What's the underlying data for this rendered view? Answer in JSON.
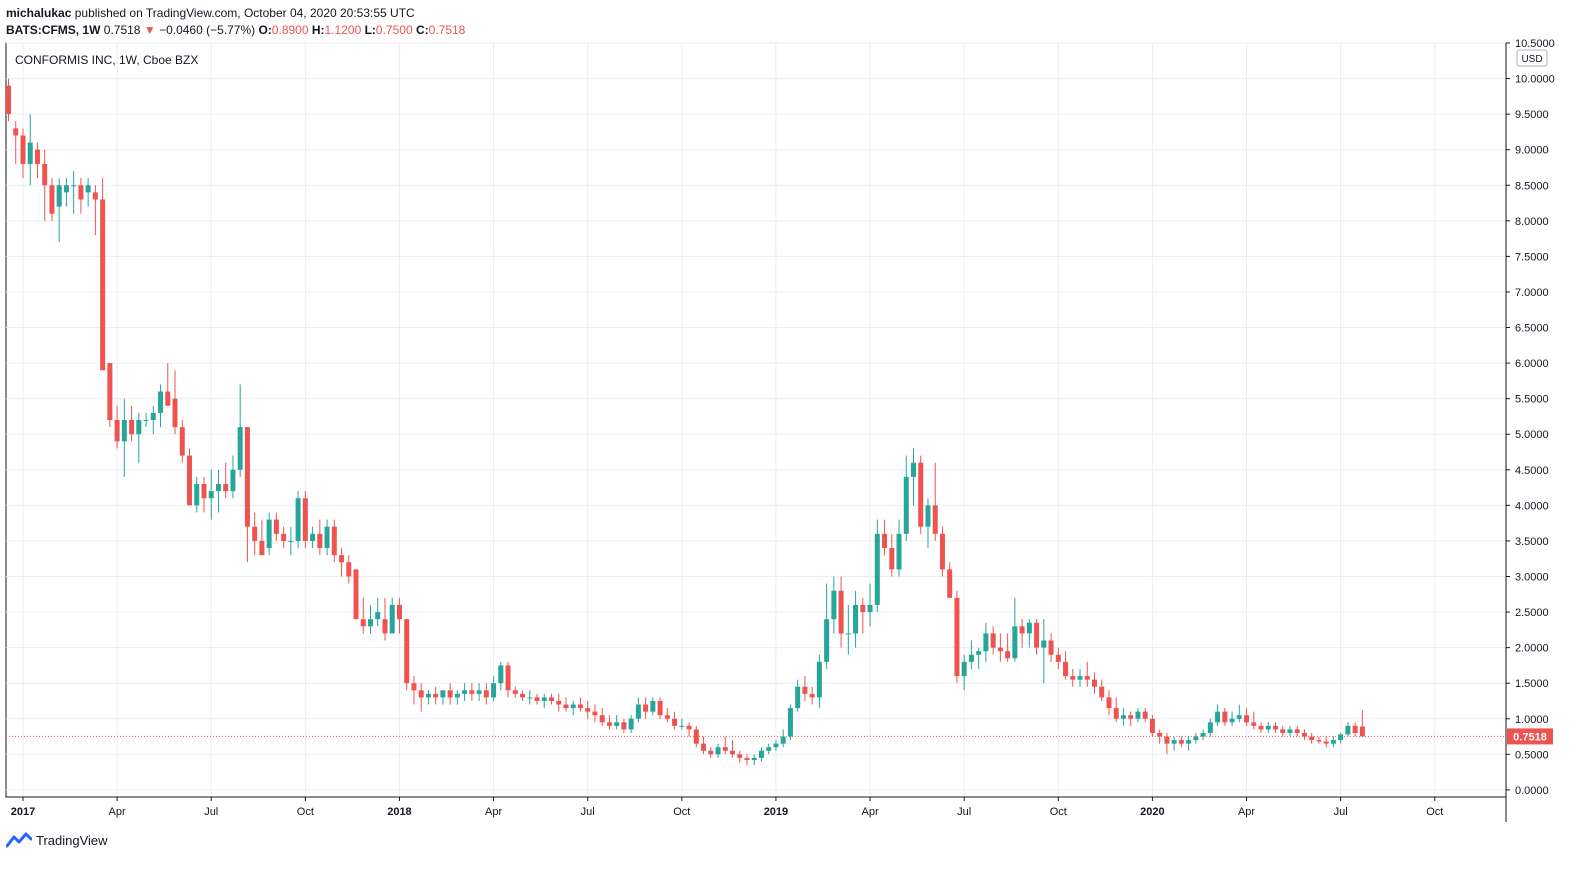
{
  "header": {
    "author": "michalukac",
    "published": "published on TradingView.com, October 04, 2020 20:53:55 UTC",
    "symbol": "BATS:CFMS, 1W",
    "last": "0.7518",
    "arrow": "▼",
    "change": "−0.0460 (−5.77%)",
    "o_label": "O:",
    "o_val": "0.8900",
    "h_label": "H:",
    "h_val": "1.1200",
    "l_label": "L:",
    "l_val": "0.7500",
    "c_label": "C:",
    "c_val": "0.7518"
  },
  "chart_title": "CONFORMIS INC, 1W, Cboe BZX",
  "currency": "USD",
  "footer_brand": "TradingView",
  "colors": {
    "up": "#26a69a",
    "down": "#ef5350",
    "grid": "#e9eef3",
    "axis": "#131722"
  },
  "chart_data": {
    "type": "candlestick",
    "ylim": [
      -0.1,
      10.5
    ],
    "y_ticks": [
      "0.0000",
      "0.5000",
      "1.0000",
      "1.5000",
      "2.0000",
      "2.5000",
      "3.0000",
      "3.5000",
      "4.0000",
      "4.5000",
      "5.0000",
      "5.5000",
      "6.0000",
      "6.5000",
      "7.0000",
      "7.5000",
      "8.0000",
      "8.5000",
      "9.0000",
      "9.5000",
      "10.0000",
      "10.5000"
    ],
    "x_ticks": [
      {
        "label": "2017",
        "bold": true,
        "week": 2
      },
      {
        "label": "Apr",
        "week": 15
      },
      {
        "label": "Jul",
        "week": 28
      },
      {
        "label": "Oct",
        "week": 41
      },
      {
        "label": "2018",
        "bold": true,
        "week": 54
      },
      {
        "label": "Apr",
        "week": 67
      },
      {
        "label": "Jul",
        "week": 80
      },
      {
        "label": "Oct",
        "week": 93
      },
      {
        "label": "2019",
        "bold": true,
        "week": 106
      },
      {
        "label": "Apr",
        "week": 119
      },
      {
        "label": "Jul",
        "week": 132
      },
      {
        "label": "Oct",
        "week": 145
      },
      {
        "label": "2020",
        "bold": true,
        "week": 158
      },
      {
        "label": "Apr",
        "week": 171
      },
      {
        "label": "Jul",
        "week": 184
      },
      {
        "label": "Oct",
        "week": 197
      }
    ],
    "last_price": 0.7518,
    "last_price_label": "0.7518",
    "candles": [
      [
        9.9,
        10.0,
        9.4,
        9.5
      ],
      [
        9.3,
        9.4,
        8.8,
        9.2
      ],
      [
        9.2,
        9.3,
        8.6,
        8.8
      ],
      [
        8.8,
        9.5,
        8.5,
        9.1
      ],
      [
        9.0,
        9.1,
        8.6,
        8.8
      ],
      [
        8.8,
        9.0,
        8.0,
        8.5
      ],
      [
        8.5,
        8.6,
        8.0,
        8.1
      ],
      [
        8.2,
        8.6,
        7.7,
        8.5
      ],
      [
        8.4,
        8.6,
        8.2,
        8.5
      ],
      [
        8.5,
        8.7,
        8.1,
        8.5
      ],
      [
        8.5,
        8.6,
        8.1,
        8.3
      ],
      [
        8.4,
        8.6,
        8.2,
        8.5
      ],
      [
        8.4,
        8.5,
        7.8,
        8.3
      ],
      [
        8.3,
        8.6,
        5.9,
        5.9
      ],
      [
        6.0,
        6.0,
        5.1,
        5.2
      ],
      [
        5.2,
        5.4,
        4.8,
        4.9
      ],
      [
        4.9,
        5.5,
        4.4,
        5.2
      ],
      [
        5.2,
        5.4,
        4.9,
        5.0
      ],
      [
        5.0,
        5.3,
        4.6,
        5.2
      ],
      [
        5.2,
        5.3,
        5.1,
        5.2
      ],
      [
        5.2,
        5.4,
        5.0,
        5.3
      ],
      [
        5.3,
        5.7,
        5.1,
        5.6
      ],
      [
        5.6,
        6.0,
        5.4,
        5.4
      ],
      [
        5.5,
        5.9,
        5.0,
        5.1
      ],
      [
        5.1,
        5.2,
        4.6,
        4.7
      ],
      [
        4.7,
        4.8,
        4.0,
        4.0
      ],
      [
        4.0,
        4.4,
        3.9,
        4.3
      ],
      [
        4.3,
        4.4,
        3.9,
        4.1
      ],
      [
        4.1,
        4.5,
        3.8,
        4.2
      ],
      [
        4.2,
        4.5,
        3.9,
        4.3
      ],
      [
        4.3,
        4.6,
        4.1,
        4.2
      ],
      [
        4.2,
        4.7,
        4.1,
        4.5
      ],
      [
        4.5,
        5.7,
        4.4,
        5.1
      ],
      [
        5.1,
        5.1,
        3.2,
        3.7
      ],
      [
        3.7,
        3.9,
        3.3,
        3.5
      ],
      [
        3.5,
        3.8,
        3.3,
        3.3
      ],
      [
        3.4,
        3.9,
        3.3,
        3.8
      ],
      [
        3.8,
        3.9,
        3.5,
        3.6
      ],
      [
        3.6,
        3.7,
        3.4,
        3.5
      ],
      [
        3.5,
        3.7,
        3.3,
        3.5
      ],
      [
        3.5,
        4.2,
        3.4,
        4.1
      ],
      [
        4.1,
        4.2,
        3.4,
        3.5
      ],
      [
        3.5,
        3.7,
        3.4,
        3.6
      ],
      [
        3.6,
        3.8,
        3.3,
        3.4
      ],
      [
        3.4,
        3.8,
        3.3,
        3.7
      ],
      [
        3.7,
        3.8,
        3.2,
        3.3
      ],
      [
        3.3,
        3.4,
        3.0,
        3.2
      ],
      [
        3.2,
        3.3,
        2.9,
        3.0
      ],
      [
        3.1,
        3.1,
        2.4,
        2.4
      ],
      [
        2.4,
        2.7,
        2.2,
        2.3
      ],
      [
        2.3,
        2.6,
        2.2,
        2.4
      ],
      [
        2.4,
        2.7,
        2.3,
        2.5
      ],
      [
        2.4,
        2.7,
        2.1,
        2.2
      ],
      [
        2.2,
        2.7,
        2.2,
        2.6
      ],
      [
        2.6,
        2.7,
        2.2,
        2.4
      ],
      [
        2.4,
        2.4,
        1.4,
        1.5
      ],
      [
        1.5,
        1.6,
        1.2,
        1.4
      ],
      [
        1.4,
        1.5,
        1.1,
        1.3
      ],
      [
        1.3,
        1.4,
        1.2,
        1.35
      ],
      [
        1.35,
        1.45,
        1.2,
        1.3
      ],
      [
        1.3,
        1.4,
        1.2,
        1.4
      ],
      [
        1.4,
        1.5,
        1.2,
        1.3
      ],
      [
        1.3,
        1.4,
        1.2,
        1.35
      ],
      [
        1.35,
        1.5,
        1.25,
        1.4
      ],
      [
        1.4,
        1.5,
        1.25,
        1.35
      ],
      [
        1.35,
        1.5,
        1.25,
        1.4
      ],
      [
        1.4,
        1.5,
        1.2,
        1.3
      ],
      [
        1.3,
        1.6,
        1.25,
        1.5
      ],
      [
        1.5,
        1.8,
        1.4,
        1.75
      ],
      [
        1.75,
        1.8,
        1.3,
        1.4
      ],
      [
        1.4,
        1.45,
        1.3,
        1.35
      ],
      [
        1.35,
        1.4,
        1.25,
        1.3
      ],
      [
        1.3,
        1.4,
        1.2,
        1.3
      ],
      [
        1.3,
        1.35,
        1.2,
        1.25
      ],
      [
        1.25,
        1.35,
        1.15,
        1.3
      ],
      [
        1.3,
        1.35,
        1.2,
        1.25
      ],
      [
        1.25,
        1.35,
        1.1,
        1.2
      ],
      [
        1.2,
        1.3,
        1.1,
        1.15
      ],
      [
        1.15,
        1.25,
        1.05,
        1.2
      ],
      [
        1.2,
        1.3,
        1.1,
        1.15
      ],
      [
        1.15,
        1.25,
        1.0,
        1.1
      ],
      [
        1.1,
        1.2,
        0.95,
        1.05
      ],
      [
        1.05,
        1.15,
        0.9,
        0.95
      ],
      [
        0.95,
        1.05,
        0.85,
        0.9
      ],
      [
        0.9,
        1.05,
        0.85,
        0.95
      ],
      [
        0.95,
        1.0,
        0.8,
        0.85
      ],
      [
        0.85,
        1.05,
        0.8,
        1.0
      ],
      [
        1.0,
        1.3,
        0.95,
        1.2
      ],
      [
        1.2,
        1.3,
        1.0,
        1.1
      ],
      [
        1.1,
        1.3,
        1.05,
        1.25
      ],
      [
        1.25,
        1.3,
        1.0,
        1.05
      ],
      [
        1.05,
        1.15,
        0.95,
        1.0
      ],
      [
        1.0,
        1.1,
        0.85,
        0.9
      ],
      [
        0.9,
        1.0,
        0.85,
        0.9
      ],
      [
        0.9,
        0.95,
        0.75,
        0.85
      ],
      [
        0.85,
        0.9,
        0.6,
        0.65
      ],
      [
        0.65,
        0.75,
        0.5,
        0.55
      ],
      [
        0.55,
        0.6,
        0.45,
        0.5
      ],
      [
        0.5,
        0.65,
        0.45,
        0.6
      ],
      [
        0.6,
        0.75,
        0.5,
        0.55
      ],
      [
        0.55,
        0.7,
        0.45,
        0.5
      ],
      [
        0.5,
        0.55,
        0.38,
        0.45
      ],
      [
        0.45,
        0.5,
        0.35,
        0.42
      ],
      [
        0.42,
        0.5,
        0.35,
        0.45
      ],
      [
        0.45,
        0.6,
        0.4,
        0.55
      ],
      [
        0.55,
        0.65,
        0.5,
        0.6
      ],
      [
        0.6,
        0.7,
        0.55,
        0.65
      ],
      [
        0.65,
        0.85,
        0.6,
        0.75
      ],
      [
        0.75,
        1.2,
        0.7,
        1.15
      ],
      [
        1.15,
        1.55,
        1.1,
        1.45
      ],
      [
        1.45,
        1.6,
        1.25,
        1.35
      ],
      [
        1.35,
        1.45,
        1.2,
        1.3
      ],
      [
        1.3,
        1.9,
        1.15,
        1.8
      ],
      [
        1.8,
        2.9,
        1.7,
        2.4
      ],
      [
        2.4,
        3.0,
        2.2,
        2.8
      ],
      [
        2.8,
        3.0,
        2.0,
        2.2
      ],
      [
        2.2,
        2.6,
        1.9,
        2.2
      ],
      [
        2.2,
        2.8,
        2.0,
        2.6
      ],
      [
        2.6,
        2.7,
        2.2,
        2.5
      ],
      [
        2.5,
        2.9,
        2.3,
        2.6
      ],
      [
        2.6,
        3.8,
        2.5,
        3.6
      ],
      [
        3.6,
        3.8,
        3.3,
        3.4
      ],
      [
        3.4,
        3.6,
        3.0,
        3.1
      ],
      [
        3.1,
        3.8,
        3.0,
        3.6
      ],
      [
        3.6,
        4.7,
        3.5,
        4.4
      ],
      [
        4.4,
        4.8,
        4.0,
        4.6
      ],
      [
        4.6,
        4.7,
        3.6,
        3.7
      ],
      [
        3.7,
        4.1,
        3.4,
        4.0
      ],
      [
        4.0,
        4.6,
        3.5,
        3.6
      ],
      [
        3.6,
        3.7,
        3.0,
        3.1
      ],
      [
        3.1,
        3.2,
        2.7,
        2.7
      ],
      [
        2.7,
        2.8,
        1.5,
        1.6
      ],
      [
        1.6,
        1.9,
        1.4,
        1.8
      ],
      [
        1.8,
        2.1,
        1.7,
        1.9
      ],
      [
        1.9,
        2.0,
        1.7,
        1.95
      ],
      [
        1.95,
        2.35,
        1.8,
        2.2
      ],
      [
        2.2,
        2.3,
        1.9,
        2.0
      ],
      [
        2.0,
        2.2,
        1.8,
        1.95
      ],
      [
        1.95,
        2.2,
        1.8,
        1.85
      ],
      [
        1.85,
        2.7,
        1.8,
        2.3
      ],
      [
        2.3,
        2.4,
        2.0,
        2.2
      ],
      [
        2.2,
        2.4,
        2.0,
        2.35
      ],
      [
        2.35,
        2.4,
        1.9,
        2.0
      ],
      [
        2.0,
        2.4,
        1.5,
        2.1
      ],
      [
        2.1,
        2.2,
        1.8,
        1.9
      ],
      [
        1.9,
        2.0,
        1.7,
        1.8
      ],
      [
        1.8,
        1.95,
        1.55,
        1.6
      ],
      [
        1.6,
        1.7,
        1.45,
        1.55
      ],
      [
        1.55,
        1.7,
        1.45,
        1.6
      ],
      [
        1.6,
        1.8,
        1.45,
        1.55
      ],
      [
        1.55,
        1.65,
        1.35,
        1.45
      ],
      [
        1.45,
        1.55,
        1.25,
        1.3
      ],
      [
        1.3,
        1.4,
        1.05,
        1.15
      ],
      [
        1.15,
        1.3,
        0.95,
        1.0
      ],
      [
        1.0,
        1.15,
        0.9,
        1.05
      ],
      [
        1.05,
        1.1,
        0.9,
        1.0
      ],
      [
        1.0,
        1.15,
        0.95,
        1.1
      ],
      [
        1.1,
        1.15,
        0.95,
        1.0
      ],
      [
        1.0,
        1.05,
        0.75,
        0.8
      ],
      [
        0.8,
        0.85,
        0.65,
        0.75
      ],
      [
        0.75,
        0.8,
        0.5,
        0.65
      ],
      [
        0.65,
        0.75,
        0.55,
        0.7
      ],
      [
        0.7,
        0.75,
        0.6,
        0.65
      ],
      [
        0.65,
        0.75,
        0.55,
        0.7
      ],
      [
        0.7,
        0.8,
        0.65,
        0.75
      ],
      [
        0.75,
        0.85,
        0.7,
        0.8
      ],
      [
        0.8,
        1.0,
        0.75,
        0.95
      ],
      [
        0.95,
        1.2,
        0.9,
        1.1
      ],
      [
        1.1,
        1.15,
        0.9,
        0.95
      ],
      [
        0.95,
        1.1,
        0.9,
        1.0
      ],
      [
        1.0,
        1.2,
        0.95,
        1.05
      ],
      [
        1.05,
        1.15,
        0.9,
        0.95
      ],
      [
        0.95,
        1.1,
        0.85,
        0.9
      ],
      [
        0.9,
        0.95,
        0.8,
        0.85
      ],
      [
        0.85,
        0.95,
        0.8,
        0.9
      ],
      [
        0.9,
        0.95,
        0.8,
        0.85
      ],
      [
        0.85,
        0.9,
        0.75,
        0.8
      ],
      [
        0.8,
        0.9,
        0.75,
        0.85
      ],
      [
        0.85,
        0.9,
        0.75,
        0.8
      ],
      [
        0.8,
        0.85,
        0.7,
        0.75
      ],
      [
        0.75,
        0.8,
        0.65,
        0.7
      ],
      [
        0.7,
        0.75,
        0.65,
        0.68
      ],
      [
        0.68,
        0.75,
        0.6,
        0.65
      ],
      [
        0.65,
        0.75,
        0.6,
        0.7
      ],
      [
        0.7,
        0.8,
        0.65,
        0.78
      ],
      [
        0.78,
        0.95,
        0.75,
        0.9
      ],
      [
        0.9,
        0.95,
        0.75,
        0.8
      ],
      [
        0.89,
        1.12,
        0.75,
        0.7518
      ]
    ]
  }
}
